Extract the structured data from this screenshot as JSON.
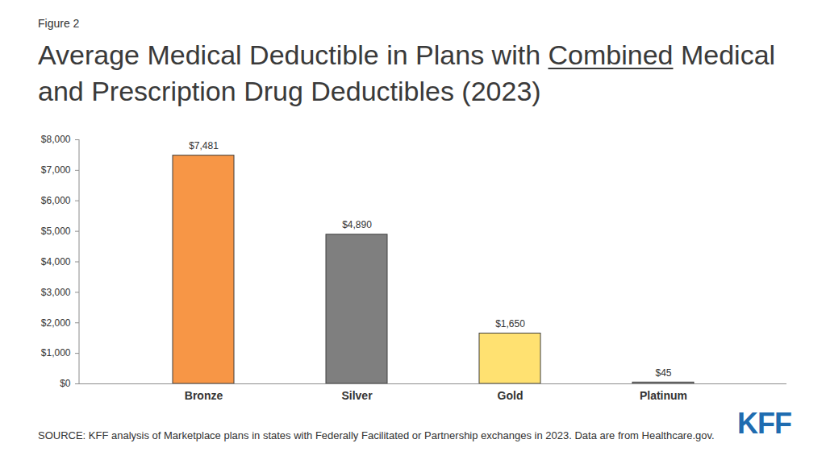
{
  "chart_data": {
    "type": "bar",
    "figure_label": "Figure 2",
    "title": "Average Medical Deductible in Plans with Combined Medical and Prescription Drug Deductibles (2023)",
    "title_emphasis": "Combined",
    "source": "SOURCE: KFF analysis of Marketplace plans in states with Federally Facilitated or Partnership exchanges in 2023. Data are from Healthcare.gov.",
    "logo": "KFF",
    "categories": [
      "Bronze",
      "Silver",
      "Gold",
      "Platinum"
    ],
    "values": [
      7481,
      4890,
      1650,
      45
    ],
    "value_labels": [
      "$7,481",
      "$4,890",
      "$1,650",
      "$45"
    ],
    "colors": [
      "#F79646",
      "#7F7F7F",
      "#FFE171",
      "#A6A6A6"
    ],
    "data_labels": true,
    "grid": false,
    "ylim": [
      0,
      8000
    ],
    "yticks": [
      {
        "value": 0,
        "label": "$0"
      },
      {
        "value": 1000,
        "label": "$1,000"
      },
      {
        "value": 2000,
        "label": "$2,000"
      },
      {
        "value": 3000,
        "label": "$3,000"
      },
      {
        "value": 4000,
        "label": "$4,000"
      },
      {
        "value": 5000,
        "label": "$5,000"
      },
      {
        "value": 6000,
        "label": "$6,000"
      },
      {
        "value": 7000,
        "label": "$7,000"
      },
      {
        "value": 8000,
        "label": "$8,000"
      }
    ]
  }
}
